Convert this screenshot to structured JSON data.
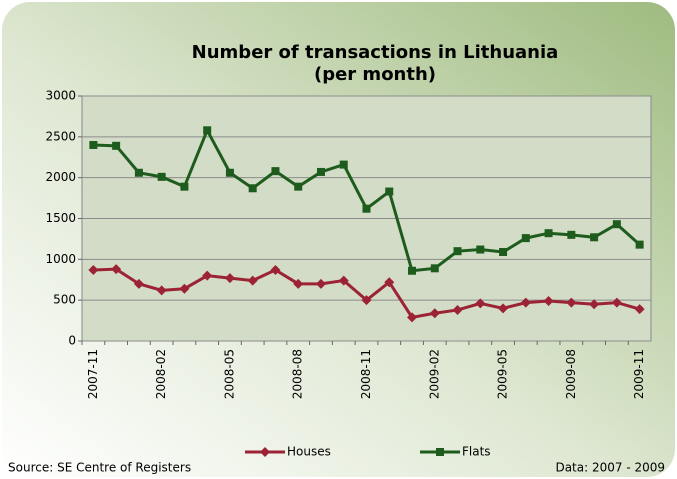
{
  "chart_data": {
    "type": "line",
    "title": "Number of transactions in Lithuania",
    "subtitle": "(per month)",
    "source": "Source: SE Centre of Registers",
    "note": "Data: 2007 - 2009",
    "categories": [
      "2007-11",
      null,
      null,
      "2008-02",
      null,
      null,
      "2008-05",
      null,
      null,
      "2008-08",
      null,
      null,
      "2008-11",
      null,
      null,
      "2009-02",
      null,
      null,
      "2009-05",
      null,
      null,
      "2009-08",
      null,
      null,
      "2009-11"
    ],
    "series": [
      {
        "name": "Houses",
        "color": "#9b2335",
        "marker": "diamond",
        "values": [
          870,
          880,
          700,
          620,
          640,
          800,
          770,
          740,
          870,
          700,
          700,
          740,
          500,
          720,
          290,
          340,
          380,
          460,
          400,
          470,
          490,
          470,
          450,
          470,
          390
        ]
      },
      {
        "name": "Flats",
        "color": "#1e5c1e",
        "marker": "square",
        "values": [
          2400,
          2390,
          2060,
          2010,
          1890,
          2580,
          2060,
          1870,
          2080,
          1890,
          2070,
          2160,
          1620,
          1830,
          860,
          890,
          1100,
          1120,
          1090,
          1260,
          1320,
          1300,
          1270,
          1430,
          1180
        ]
      }
    ],
    "ylim": [
      0,
      3000
    ],
    "yticks": [
      0,
      500,
      1000,
      1500,
      2000,
      2500,
      3000
    ],
    "grid": true,
    "legend": "bottom"
  }
}
